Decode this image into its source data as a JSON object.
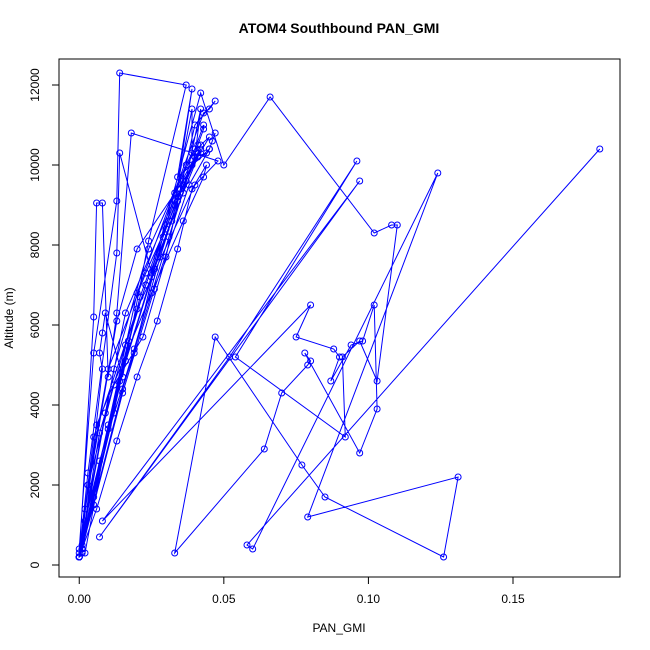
{
  "chart_data": {
    "type": "line",
    "title": "ATOM4 Southbound PAN_GMI",
    "xlabel": "PAN_GMI",
    "ylabel": "Altitude (m)",
    "xlim": [
      -0.007,
      0.187
    ],
    "ylim": [
      -300,
      12650
    ],
    "x_ticks": [
      0.0,
      0.05,
      0.1,
      0.15
    ],
    "x_tick_labels": [
      "0.00",
      "0.05",
      "0.10",
      "0.15"
    ],
    "y_ticks": [
      0,
      2000,
      4000,
      6000,
      8000,
      10000,
      12000
    ],
    "y_tick_labels": [
      "0",
      "2000",
      "4000",
      "6000",
      "8000",
      "10000",
      "12000"
    ],
    "marker": "open-circle",
    "grid": false,
    "colors": {
      "series": "#0000ff",
      "axes": "#000000"
    },
    "x": [
      0.0,
      0.001,
      0.02,
      0.043,
      0.045,
      0.047,
      0.04,
      0.035,
      0.03,
      0.022,
      0.012,
      0.003,
      0.0,
      0.006,
      0.025,
      0.036,
      0.043,
      0.044,
      0.039,
      0.034,
      0.027,
      0.02,
      0.013,
      0.006,
      0.0,
      0.003,
      0.01,
      0.023,
      0.031,
      0.039,
      0.045,
      0.046,
      0.047,
      0.045,
      0.038,
      0.026,
      0.015,
      0.005,
      0.0,
      0.001,
      0.015,
      0.031,
      0.041,
      0.043,
      0.043,
      0.04,
      0.033,
      0.026,
      0.019,
      0.012,
      0.005,
      0.0,
      0.0,
      0.002,
      0.014,
      0.026,
      0.032,
      0.041,
      0.042,
      0.037,
      0.033,
      0.03,
      0.023,
      0.017,
      0.01,
      0.0,
      0.001,
      0.016,
      0.027,
      0.036,
      0.042,
      0.04,
      0.036,
      0.025,
      0.016,
      0.005,
      0.0,
      0.0,
      0.009,
      0.016,
      0.032,
      0.036,
      0.041,
      0.042,
      0.045,
      0.036,
      0.034,
      0.034,
      0.028,
      0.019,
      0.007,
      0.0,
      0.002,
      0.013,
      0.02,
      0.034,
      0.04,
      0.044,
      0.034,
      0.039,
      0.033,
      0.029,
      0.023,
      0.016,
      0.007,
      0.0,
      0.002,
      0.01,
      0.021,
      0.033,
      0.039,
      0.039,
      0.037,
      0.024,
      0.012,
      0.0,
      0.0,
      0.005,
      0.013,
      0.014,
      0.037,
      0.024,
      0.015,
      0.009,
      0.008,
      0.007,
      0.008,
      0.001,
      0.0,
      0.005,
      0.02,
      0.04,
      0.048,
      0.018,
      0.013,
      0.01,
      0.008,
      0.006,
      0.005,
      0.0,
      0.003,
      0.013,
      0.014,
      0.025,
      0.042,
      0.05,
      0.066,
      0.102,
      0.108,
      0.11,
      0.103,
      0.097,
      0.091,
      0.092,
      0.054,
      0.096,
      0.052,
      0.007,
      0.097,
      0.008,
      0.08,
      0.075,
      0.088,
      0.09,
      0.087,
      0.094,
      0.098,
      0.102,
      0.103,
      0.097,
      0.078,
      0.08,
      0.079,
      0.07,
      0.064,
      0.033,
      0.047,
      0.077,
      0.085,
      0.126,
      0.131,
      0.079,
      0.124,
      0.06,
      0.058,
      0.18
    ],
    "y": [
      200,
      500,
      6800,
      11300,
      11400,
      11600,
      11000,
      9400,
      7700,
      5700,
      4500,
      2000,
      200,
      3500,
      6800,
      8600,
      9700,
      10000,
      9400,
      7900,
      6100,
      4700,
      3100,
      1400,
      200,
      2000,
      4900,
      7300,
      8600,
      10000,
      10400,
      10600,
      10800,
      10400,
      9500,
      6900,
      4300,
      1500,
      200,
      400,
      4400,
      8200,
      10500,
      10900,
      11000,
      10400,
      9300,
      7400,
      5300,
      3800,
      1700,
      200,
      200,
      1100,
      4600,
      7400,
      8600,
      10200,
      10400,
      9600,
      9000,
      8400,
      7000,
      5600,
      3500,
      200,
      400,
      5100,
      7700,
      9300,
      11400,
      10200,
      9500,
      7200,
      5100,
      1800,
      200,
      300,
      3800,
      6300,
      9000,
      9500,
      10300,
      10500,
      10700,
      9600,
      9200,
      9100,
      7700,
      5400,
      2600,
      200,
      1400,
      6100,
      7900,
      9400,
      10200,
      10300,
      9700,
      11900,
      9000,
      8200,
      7000,
      5500,
      3300,
      200,
      300,
      3400,
      6700,
      9100,
      11400,
      10300,
      10000,
      7900,
      4900,
      200,
      400,
      5300,
      9100,
      12300,
      12000,
      8100,
      4700,
      6300,
      5800,
      5300,
      4900,
      300,
      200,
      3200,
      6400,
      9500,
      10100,
      10800,
      6300,
      4700,
      9050,
      9050,
      6200,
      200,
      2300,
      7800,
      10300,
      7300,
      11800,
      10000,
      11700,
      8300,
      8500,
      8500,
      4600,
      5600,
      5200,
      3200,
      5200,
      10100,
      5200,
      700,
      9600,
      1100,
      6500,
      5700,
      5400,
      5200,
      4600,
      5500,
      5600,
      6500,
      3900,
      2800,
      5300,
      5100,
      5000,
      4300,
      2900,
      300,
      5700,
      2500,
      1700,
      200,
      2200,
      1200,
      9800,
      400,
      500,
      10400
    ]
  }
}
